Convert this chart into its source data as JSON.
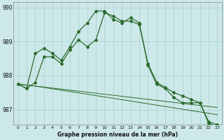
{
  "title": "Graphe pression niveau de la mer (hPa)",
  "bg_color": "#cce8e8",
  "grid_color": "#aacfcf",
  "line_color": "#2d6b2d",
  "x_labels": [
    "0",
    "1",
    "2",
    "3",
    "4",
    "5",
    "6",
    "7",
    "8",
    "9",
    "10",
    "11",
    "12",
    "13",
    "14",
    "15",
    "16",
    "17",
    "18",
    "19",
    "20",
    "21",
    "22",
    "23"
  ],
  "ylim": [
    986.55,
    990.15
  ],
  "yticks": [
    987,
    988,
    989,
    990
  ],
  "s1": [
    987.75,
    987.62,
    987.8,
    988.55,
    988.55,
    988.35,
    988.75,
    989.05,
    988.85,
    989.05,
    989.85,
    989.75,
    989.6,
    989.6,
    989.5,
    988.35,
    987.8,
    987.65,
    987.5,
    987.4,
    987.3,
    987.2,
    986.65,
    986.55
  ],
  "s2": [
    987.75,
    987.62,
    988.65,
    988.8,
    988.65,
    988.45,
    988.85,
    989.3,
    989.55,
    989.9,
    989.9,
    989.65,
    989.55,
    989.7,
    989.55,
    988.3,
    987.75,
    987.62,
    987.35,
    987.2,
    987.2,
    987.2,
    986.6,
    986.5
  ],
  "s3": [
    987.75,
    987.72,
    987.69,
    987.66,
    987.63,
    987.6,
    987.57,
    987.54,
    987.51,
    987.48,
    987.45,
    987.42,
    987.39,
    987.36,
    987.33,
    987.3,
    987.27,
    987.24,
    987.21,
    987.18,
    987.15,
    987.12,
    987.09,
    987.06
  ],
  "s4": [
    987.75,
    987.72,
    987.69,
    987.65,
    987.61,
    987.57,
    987.53,
    987.49,
    987.45,
    987.41,
    987.37,
    987.33,
    987.29,
    987.25,
    987.21,
    987.17,
    987.13,
    987.09,
    987.05,
    987.01,
    986.97,
    986.93,
    986.89,
    986.85
  ]
}
